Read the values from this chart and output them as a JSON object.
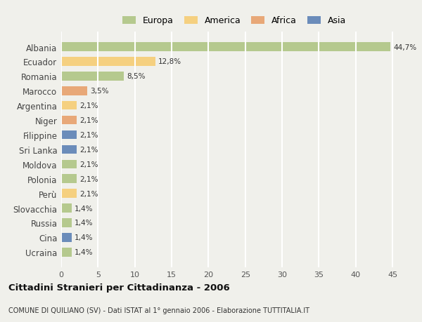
{
  "countries": [
    "Albania",
    "Ecuador",
    "Romania",
    "Marocco",
    "Argentina",
    "Niger",
    "Filippine",
    "Sri Lanka",
    "Moldova",
    "Polonia",
    "Perù",
    "Slovacchia",
    "Russia",
    "Cina",
    "Ucraina"
  ],
  "values": [
    44.7,
    12.8,
    8.5,
    3.5,
    2.1,
    2.1,
    2.1,
    2.1,
    2.1,
    2.1,
    2.1,
    1.4,
    1.4,
    1.4,
    1.4
  ],
  "labels": [
    "44,7%",
    "12,8%",
    "8,5%",
    "3,5%",
    "2,1%",
    "2,1%",
    "2,1%",
    "2,1%",
    "2,1%",
    "2,1%",
    "2,1%",
    "1,4%",
    "1,4%",
    "1,4%",
    "1,4%"
  ],
  "continents": [
    "Europa",
    "America",
    "Europa",
    "Africa",
    "America",
    "Africa",
    "Asia",
    "Asia",
    "Europa",
    "Europa",
    "America",
    "Europa",
    "Europa",
    "Asia",
    "Europa"
  ],
  "colors": {
    "Europa": "#b5c98e",
    "America": "#f5d080",
    "Africa": "#e8a878",
    "Asia": "#6b8cba"
  },
  "xlim": [
    0,
    47
  ],
  "xticks": [
    0,
    5,
    10,
    15,
    20,
    25,
    30,
    35,
    40,
    45
  ],
  "title": "Cittadini Stranieri per Cittadinanza - 2006",
  "subtitle": "COMUNE DI QUILIANO (SV) - Dati ISTAT al 1° gennaio 2006 - Elaborazione TUTTITALIA.IT",
  "background_color": "#f0f0eb",
  "grid_color": "#ffffff",
  "bar_height": 0.6,
  "legend_order": [
    "Europa",
    "America",
    "Africa",
    "Asia"
  ]
}
